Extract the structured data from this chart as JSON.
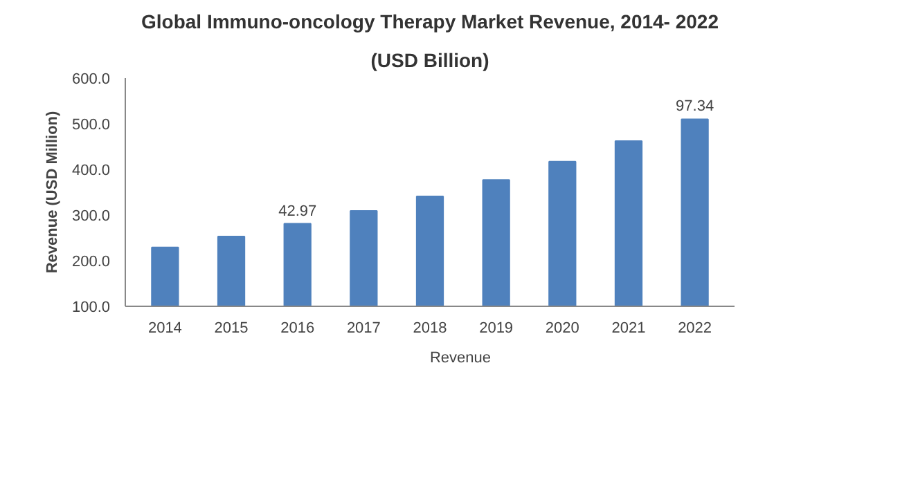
{
  "chart_data": {
    "type": "bar",
    "title": "Global Immuno-oncology Therapy Market Revenue, 2014- 2022",
    "subtitle": "(USD Billion)",
    "ylabel": "Revenue (USD Million)",
    "categories": [
      "2014",
      "2015",
      "2016",
      "2017",
      "2018",
      "2019",
      "2020",
      "2021",
      "2022"
    ],
    "series": [
      {
        "name": "Revenue",
        "color": "#4f81bd",
        "values": [
          229,
          253,
          281,
          309,
          341,
          377,
          417,
          462,
          510
        ]
      }
    ],
    "annotations": [
      {
        "text": "42.97",
        "x": "2016",
        "y": 281
      },
      {
        "text": "97.34",
        "x": "2022",
        "y": 510
      }
    ],
    "ylim": [
      100,
      600
    ],
    "yticks": [
      {
        "value": 100,
        "label": "100.0"
      },
      {
        "value": 200,
        "label": "200.0"
      },
      {
        "value": 300,
        "label": "300.0"
      },
      {
        "value": 400,
        "label": "400.0"
      },
      {
        "value": 500,
        "label": "500.0"
      },
      {
        "value": 600,
        "label": "600.0"
      }
    ],
    "grid": false,
    "legend": "bottom"
  }
}
